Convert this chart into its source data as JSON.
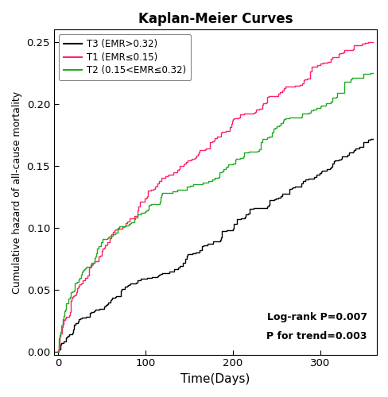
{
  "title": "Kaplan-Meier Curves",
  "xlabel": "Time(Days)",
  "ylabel": "Cumulative hazard of all-cause mortality",
  "xlim": [
    -5,
    365
  ],
  "ylim": [
    -0.002,
    0.26
  ],
  "yticks": [
    0.0,
    0.05,
    0.1,
    0.15,
    0.2,
    0.25
  ],
  "xticks": [
    0,
    100,
    200,
    300
  ],
  "annotation_line1": "Log-rank P=0.007",
  "annotation_line2": "P for trend=0.003",
  "legend_labels": [
    "T3 (EMR>0.32)",
    "T1 (EMR≤0.15)",
    "T2 (0.15<EMR≤0.32)"
  ],
  "T1_color": "#FF2266",
  "T2_color": "#22AA22",
  "T3_color": "#000000",
  "line_width": 1.0,
  "background_color": "#ffffff",
  "T1_final": 0.25,
  "T2_final": 0.225,
  "T3_final": 0.172,
  "T1_shape": 0.52,
  "T2_shape": 0.55,
  "T3_shape": 0.7,
  "T1_nevents": 250,
  "T2_nevents": 220,
  "T3_nevents": 200,
  "x_max": 360
}
